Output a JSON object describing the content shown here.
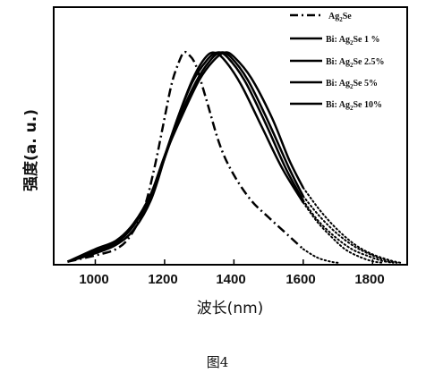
{
  "chart_data": {
    "type": "line",
    "ylabel": "强度(a. u.)",
    "xlabel": "波长(nm)",
    "xlim": [
      880,
      1900
    ],
    "ylim": [
      0,
      1.05
    ],
    "x_ticks": [
      "1000",
      "1200",
      "1400",
      "1600",
      "1800"
    ],
    "y_ticks": [],
    "grid": false,
    "legend_position": "top-right",
    "series": [
      {
        "name": "Ag2Se",
        "label_parts": [
          "Ag",
          "2",
          "Se"
        ],
        "style": "dashdot",
        "points": [
          [
            920,
            0.01
          ],
          [
            1000,
            0.04
          ],
          [
            1060,
            0.07
          ],
          [
            1100,
            0.13
          ],
          [
            1140,
            0.26
          ],
          [
            1170,
            0.45
          ],
          [
            1195,
            0.65
          ],
          [
            1220,
            0.85
          ],
          [
            1240,
            0.95
          ],
          [
            1255,
            1.0
          ],
          [
            1270,
            0.99
          ],
          [
            1290,
            0.94
          ],
          [
            1320,
            0.78
          ],
          [
            1360,
            0.56
          ],
          [
            1400,
            0.42
          ],
          [
            1450,
            0.3
          ],
          [
            1500,
            0.22
          ],
          [
            1560,
            0.13
          ],
          [
            1600,
            0.07
          ]
        ],
        "dotted_tail": [
          [
            1600,
            0.07
          ],
          [
            1640,
            0.03
          ],
          [
            1680,
            0.01
          ],
          [
            1700,
            0.005
          ]
        ]
      },
      {
        "name": "Bi: Ag2Se 1 %",
        "label_parts": [
          "Bi: Ag",
          "2",
          "Se  1 %"
        ],
        "style": "solid",
        "points": [
          [
            920,
            0.01
          ],
          [
            1000,
            0.05
          ],
          [
            1060,
            0.09
          ],
          [
            1110,
            0.16
          ],
          [
            1160,
            0.3
          ],
          [
            1200,
            0.5
          ],
          [
            1240,
            0.7
          ],
          [
            1280,
            0.87
          ],
          [
            1310,
            0.96
          ],
          [
            1338,
            1.0
          ],
          [
            1370,
            0.97
          ],
          [
            1420,
            0.85
          ],
          [
            1480,
            0.65
          ],
          [
            1540,
            0.45
          ],
          [
            1600,
            0.29
          ]
        ],
        "dotted_tail": [
          [
            1600,
            0.29
          ],
          [
            1640,
            0.2
          ],
          [
            1680,
            0.13
          ],
          [
            1720,
            0.07
          ],
          [
            1760,
            0.035
          ],
          [
            1800,
            0.012
          ],
          [
            1830,
            0.005
          ]
        ]
      },
      {
        "name": "Bi: Ag2Se 2.5%",
        "label_parts": [
          "Bi: Ag",
          "2",
          "Se  2.5%"
        ],
        "style": "solid",
        "points": [
          [
            920,
            0.01
          ],
          [
            1000,
            0.06
          ],
          [
            1060,
            0.1
          ],
          [
            1110,
            0.18
          ],
          [
            1160,
            0.32
          ],
          [
            1200,
            0.51
          ],
          [
            1240,
            0.7
          ],
          [
            1280,
            0.86
          ],
          [
            1320,
            0.96
          ],
          [
            1350,
            1.0
          ],
          [
            1380,
            0.98
          ],
          [
            1430,
            0.87
          ],
          [
            1490,
            0.67
          ],
          [
            1550,
            0.45
          ],
          [
            1600,
            0.3
          ]
        ],
        "dotted_tail": [
          [
            1600,
            0.3
          ],
          [
            1640,
            0.21
          ],
          [
            1690,
            0.13
          ],
          [
            1740,
            0.07
          ],
          [
            1790,
            0.035
          ],
          [
            1830,
            0.013
          ],
          [
            1860,
            0.005
          ]
        ]
      },
      {
        "name": "Bi: Ag2Se 5%",
        "label_parts": [
          "Bi: Ag",
          "2",
          "Se  5%"
        ],
        "style": "solid",
        "points": [
          [
            920,
            0.01
          ],
          [
            1000,
            0.06
          ],
          [
            1060,
            0.1
          ],
          [
            1110,
            0.18
          ],
          [
            1160,
            0.32
          ],
          [
            1200,
            0.5
          ],
          [
            1240,
            0.68
          ],
          [
            1290,
            0.86
          ],
          [
            1330,
            0.96
          ],
          [
            1360,
            1.0
          ],
          [
            1390,
            0.98
          ],
          [
            1440,
            0.87
          ],
          [
            1500,
            0.67
          ],
          [
            1560,
            0.45
          ],
          [
            1600,
            0.32
          ]
        ],
        "dotted_tail": [
          [
            1600,
            0.32
          ],
          [
            1650,
            0.22
          ],
          [
            1700,
            0.14
          ],
          [
            1750,
            0.08
          ],
          [
            1800,
            0.04
          ],
          [
            1840,
            0.015
          ],
          [
            1870,
            0.005
          ]
        ]
      },
      {
        "name": "Bi: Ag2Se 10%",
        "label_parts": [
          "Bi: Ag",
          "2",
          "Se  10%"
        ],
        "style": "solid",
        "points": [
          [
            920,
            0.01
          ],
          [
            1000,
            0.07
          ],
          [
            1060,
            0.11
          ],
          [
            1110,
            0.19
          ],
          [
            1160,
            0.33
          ],
          [
            1200,
            0.51
          ],
          [
            1250,
            0.7
          ],
          [
            1300,
            0.87
          ],
          [
            1340,
            0.96
          ],
          [
            1373,
            1.0
          ],
          [
            1400,
            0.98
          ],
          [
            1450,
            0.88
          ],
          [
            1510,
            0.69
          ],
          [
            1560,
            0.49
          ],
          [
            1600,
            0.36
          ]
        ],
        "dotted_tail": [
          [
            1600,
            0.36
          ],
          [
            1650,
            0.25
          ],
          [
            1700,
            0.16
          ],
          [
            1750,
            0.09
          ],
          [
            1800,
            0.045
          ],
          [
            1850,
            0.017
          ],
          [
            1880,
            0.005
          ]
        ]
      }
    ]
  },
  "caption": "图4"
}
